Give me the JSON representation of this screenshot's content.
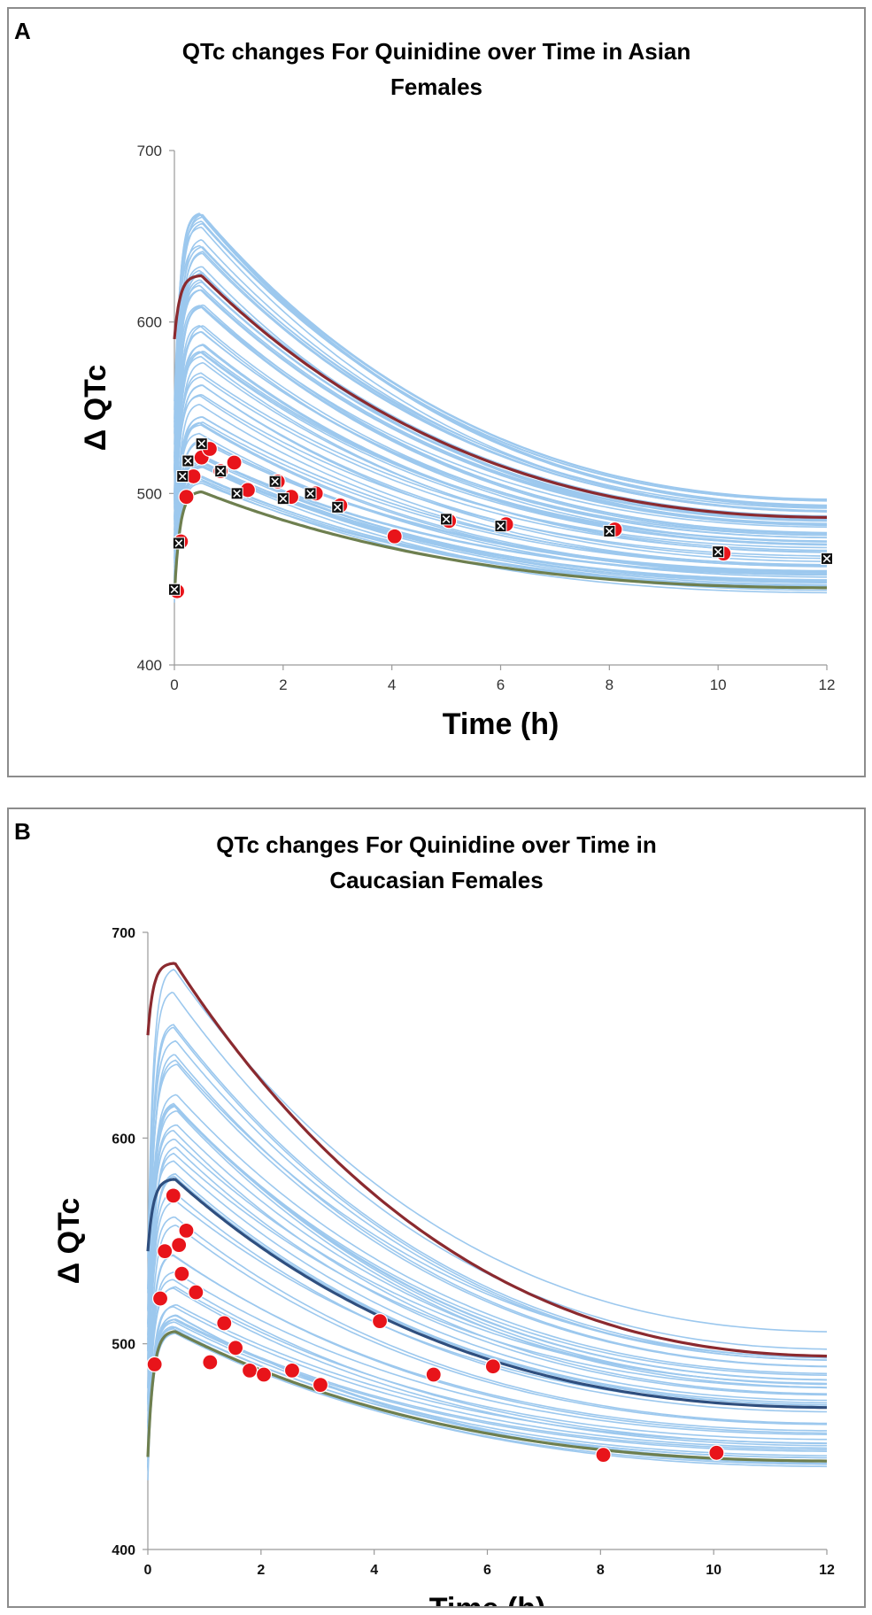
{
  "chart_data": [
    {
      "panel": "A",
      "type": "line",
      "title_lines": [
        "QTc changes For Quinidine over Time in Asian",
        "Females"
      ],
      "xlabel": "Time (h)",
      "ylabel": "Δ QTc",
      "xlim": [
        0,
        12
      ],
      "ylim": [
        400,
        700
      ],
      "xticks": [
        0,
        2,
        4,
        6,
        8,
        10,
        12
      ],
      "yticks": [
        400,
        500,
        600,
        700
      ],
      "colors": {
        "sim": "#9cc8ee",
        "upper": "#8b2a2f",
        "lower": "#6e7f4f",
        "observed": "#e8141a"
      },
      "simulated_envelope": {
        "trials": 70,
        "peak_time": 0.5,
        "baseline_range": [
          430,
          445
        ],
        "peak_range": [
          500,
          677
        ],
        "end_range": [
          440,
          498
        ]
      },
      "series": [
        {
          "name": "upper percentile",
          "color": "#8b2a2f",
          "baseline": 590,
          "peak": 627,
          "end": 486
        },
        {
          "name": "lower percentile",
          "color": "#6e7f4f",
          "baseline": 440,
          "peak": 501,
          "end": 445
        }
      ],
      "observed_points": [
        {
          "x": 0.05,
          "y": 443
        },
        {
          "x": 0.12,
          "y": 472
        },
        {
          "x": 0.22,
          "y": 498
        },
        {
          "x": 0.35,
          "y": 510
        },
        {
          "x": 0.5,
          "y": 521
        },
        {
          "x": 0.65,
          "y": 526
        },
        {
          "x": 0.85,
          "y": 513
        },
        {
          "x": 1.1,
          "y": 518
        },
        {
          "x": 1.35,
          "y": 502
        },
        {
          "x": 1.9,
          "y": 507
        },
        {
          "x": 2.15,
          "y": 498
        },
        {
          "x": 2.6,
          "y": 500
        },
        {
          "x": 3.05,
          "y": 493
        },
        {
          "x": 4.05,
          "y": 475
        },
        {
          "x": 5.05,
          "y": 484
        },
        {
          "x": 6.1,
          "y": 482
        },
        {
          "x": 8.1,
          "y": 479
        },
        {
          "x": 10.1,
          "y": 465
        }
      ],
      "marker_points": [
        {
          "x": 0.0,
          "y": 444
        },
        {
          "x": 0.08,
          "y": 471
        },
        {
          "x": 0.15,
          "y": 510
        },
        {
          "x": 0.25,
          "y": 519
        },
        {
          "x": 0.5,
          "y": 529
        },
        {
          "x": 0.85,
          "y": 513
        },
        {
          "x": 1.15,
          "y": 500
        },
        {
          "x": 1.85,
          "y": 507
        },
        {
          "x": 2.0,
          "y": 497
        },
        {
          "x": 2.5,
          "y": 500
        },
        {
          "x": 3.0,
          "y": 492
        },
        {
          "x": 5.0,
          "y": 485
        },
        {
          "x": 6.0,
          "y": 481
        },
        {
          "x": 8.0,
          "y": 478
        },
        {
          "x": 10.0,
          "y": 466
        },
        {
          "x": 12.0,
          "y": 462
        }
      ]
    },
    {
      "panel": "B",
      "type": "line",
      "title_lines": [
        "QTc changes For Quinidine over Time in",
        "Caucasian Females"
      ],
      "xlabel": "Time (h)",
      "ylabel": "Δ QTc",
      "xlim": [
        0,
        12
      ],
      "ylim": [
        400,
        700
      ],
      "xticks": [
        0,
        2,
        4,
        6,
        8,
        10,
        12
      ],
      "yticks": [
        400,
        500,
        600,
        700
      ],
      "colors": {
        "sim": "#9cc8ee",
        "upper": "#8b2a2f",
        "lower": "#6e7f4f",
        "observed": "#e8141a"
      },
      "simulated_envelope": {
        "trials": 45,
        "peak_time": 0.48,
        "baseline_range": [
          430,
          445
        ],
        "peak_range": [
          505,
          699
        ],
        "end_range": [
          441,
          510
        ]
      },
      "series": [
        {
          "name": "upper percentile",
          "color": "#8b2a2f",
          "baseline": 650,
          "peak": 685,
          "end": 494
        },
        {
          "name": "median",
          "color": "#2f4f7f",
          "baseline": 545,
          "peak": 580,
          "end": 469
        },
        {
          "name": "lower percentile",
          "color": "#6e7f4f",
          "baseline": 445,
          "peak": 506,
          "end": 443
        }
      ],
      "observed_points": [
        {
          "x": 0.12,
          "y": 490
        },
        {
          "x": 0.22,
          "y": 522
        },
        {
          "x": 0.3,
          "y": 545
        },
        {
          "x": 0.45,
          "y": 572
        },
        {
          "x": 0.55,
          "y": 548
        },
        {
          "x": 0.6,
          "y": 534
        },
        {
          "x": 0.68,
          "y": 555
        },
        {
          "x": 0.85,
          "y": 525
        },
        {
          "x": 1.1,
          "y": 491
        },
        {
          "x": 1.35,
          "y": 510
        },
        {
          "x": 1.55,
          "y": 498
        },
        {
          "x": 1.8,
          "y": 487
        },
        {
          "x": 2.05,
          "y": 485
        },
        {
          "x": 2.55,
          "y": 487
        },
        {
          "x": 3.05,
          "y": 480
        },
        {
          "x": 4.1,
          "y": 511
        },
        {
          "x": 5.05,
          "y": 485
        },
        {
          "x": 6.1,
          "y": 489
        },
        {
          "x": 8.05,
          "y": 446
        },
        {
          "x": 10.05,
          "y": 447
        }
      ],
      "marker_points": []
    }
  ]
}
